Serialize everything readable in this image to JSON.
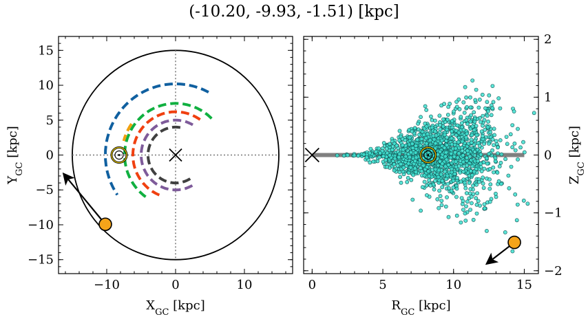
{
  "title": "(-10.20, -9.93, -1.51) [kpc]",
  "chart_data": [
    {
      "type": "scatter",
      "panel": "left",
      "xlabel": "X",
      "xlabel_sub": "GC",
      "xlabel_unit": " [kpc]",
      "ylabel": "Y",
      "ylabel_sub": "GC",
      "ylabel_unit": " [kpc]",
      "xlim": [
        -17,
        17
      ],
      "ylim": [
        -17,
        17
      ],
      "xticks": [
        -10,
        0,
        10
      ],
      "yticks": [
        -15,
        -10,
        -5,
        0,
        5,
        10,
        15
      ],
      "disk_radius": 15,
      "galactic_center": [
        0,
        0
      ],
      "sun": [
        -8.2,
        0
      ],
      "object": [
        -10.2,
        -9.93
      ],
      "velocity_arrow_end": [
        -16.0,
        -3.0
      ],
      "spiral_arms": [
        {
          "color": "#1060a0",
          "r": 10.2,
          "theta_start": 62,
          "theta_end": 215
        },
        {
          "color": "#10b040",
          "r": 7.4,
          "theta_start": 45,
          "theta_end": 235
        },
        {
          "color": "#f0a010",
          "r": 7.8,
          "theta_start": 145,
          "theta_end": 165
        },
        {
          "color": "#f04010",
          "r": 6.2,
          "theta_start": 55,
          "theta_end": 250
        },
        {
          "color": "#7e5b9a",
          "r": 5.0,
          "theta_start": 60,
          "theta_end": 300
        },
        {
          "color": "#404040",
          "r": 4.0,
          "theta_start": 80,
          "theta_end": 310
        }
      ]
    },
    {
      "type": "scatter",
      "panel": "right",
      "xlabel": "R",
      "xlabel_sub": "GC",
      "xlabel_unit": " [kpc]",
      "ylabel": "Z",
      "ylabel_sub": "GC",
      "ylabel_unit": " [kpc]",
      "xlim": [
        -0.6,
        16
      ],
      "ylim": [
        -2.05,
        2.05
      ],
      "xticks": [
        0,
        5,
        10,
        15
      ],
      "yticks": [
        -2,
        -1,
        0,
        1,
        2
      ],
      "plane_range": [
        0,
        15
      ],
      "galactic_center": [
        0,
        0
      ],
      "sun": [
        8.2,
        0
      ],
      "object": [
        14.3,
        -1.51
      ],
      "velocity_arrow_end": [
        12.5,
        -1.85
      ],
      "cloud": {
        "count": 1500,
        "r_mean": 9.0,
        "r_sd": 2.3,
        "z_sd_scale": 0.045
      }
    }
  ]
}
